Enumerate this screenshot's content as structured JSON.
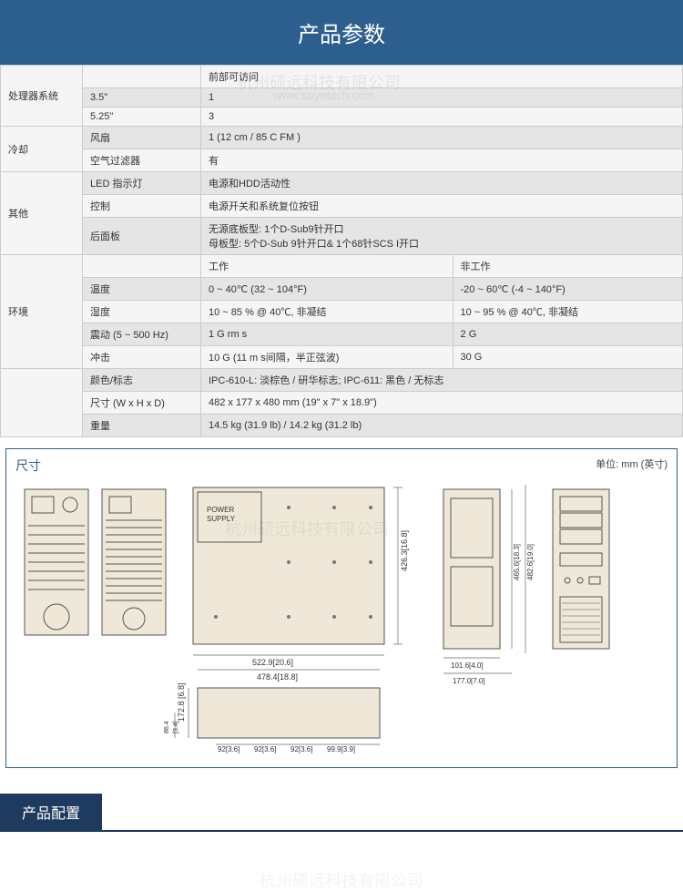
{
  "header": {
    "title": "产品参数"
  },
  "watermark": {
    "cn": "杭州硕远科技有限公司",
    "en": "www.soyetech.com"
  },
  "table": {
    "r1": {
      "cat": "处理器系统",
      "sub_a": "3.5\"",
      "val_a_lbl": "前部可访问",
      "val_a": "1",
      "sub_b": "5.25\"",
      "val_b": "3"
    },
    "r2": {
      "cat": "冷却",
      "sub_a": "风扇",
      "val_a": "1 (12 cm / 85 C FM )",
      "sub_b": "空气过滤器",
      "val_b": "有"
    },
    "r3": {
      "cat": "其他",
      "row_a": {
        "sub": "LED 指示灯",
        "val": "电源和HDD活动性"
      },
      "row_b": {
        "sub": "控制",
        "val": "电源开关和系统复位按钮"
      },
      "row_c": {
        "sub": "后面板",
        "val1": "无源底板型: 1个D-Sub9针开口",
        "val2": "母板型: 5个D-Sub 9针开口& 1个68针SCS I开口"
      }
    },
    "r4": {
      "cat": "环境",
      "head": {
        "work": "工作",
        "nonwork": "非工作"
      },
      "temp": {
        "sub": "温度",
        "w": "0 ~ 40℃ (32 ~ 104°F)",
        "nw": "-20 ~ 60℃ (-4 ~ 140°F)"
      },
      "humid": {
        "sub": "湿度",
        "w": "10 ~ 85 % @ 40℃, 非凝结",
        "nw": "10 ~ 95 % @ 40℃, 非凝结"
      },
      "vib": {
        "sub": "震动 (5 ~ 500 Hz)",
        "w": "1 G rm s",
        "nw": "2 G"
      },
      "shock": {
        "sub": "冲击",
        "w": "10 G (11 m s间隔，半正弦波)",
        "nw": "30 G"
      }
    },
    "r5": {
      "color": {
        "sub": "颜色/标志",
        "val": "IPC-610-L: 淡棕色 / 研华标志; IPC-611: 黑色 / 无标志"
      },
      "size": {
        "sub": "尺寸 (W x H x D)",
        "val": "482 x 177 x 480 mm  (19\" x 7\" x 18.9\")"
      },
      "weight": {
        "sub": "重量",
        "val": "14.5 kg (31.9 lb) / 14.2 kg (31.2 lb)"
      }
    }
  },
  "dimensions": {
    "title": "尺寸",
    "unit": "单位: mm (英寸)",
    "labels": {
      "power_supply": "POWER\nSUPPLY",
      "d522": "522.9[20.6]",
      "d478": "478.4[18.8]",
      "d426": "426.3[16.8]",
      "d172": "172.8 [6.8]",
      "d86": "86.4\n[3.4]",
      "d92a": "92[3.6]",
      "d92b": "92[3.6]",
      "d92c": "92[3.6]",
      "d99": "99.9[3.9]",
      "d101": "101.6[4.0]",
      "d177": "177.0[7.0]",
      "d465": "465.6[18.3]",
      "d482": "482.6[19.0]"
    }
  },
  "config": {
    "title": "产品配置"
  },
  "colors": {
    "banner": "#2d5f8e",
    "cream": "#efe8d8",
    "border": "#888888",
    "navy": "#1f3a5f"
  }
}
